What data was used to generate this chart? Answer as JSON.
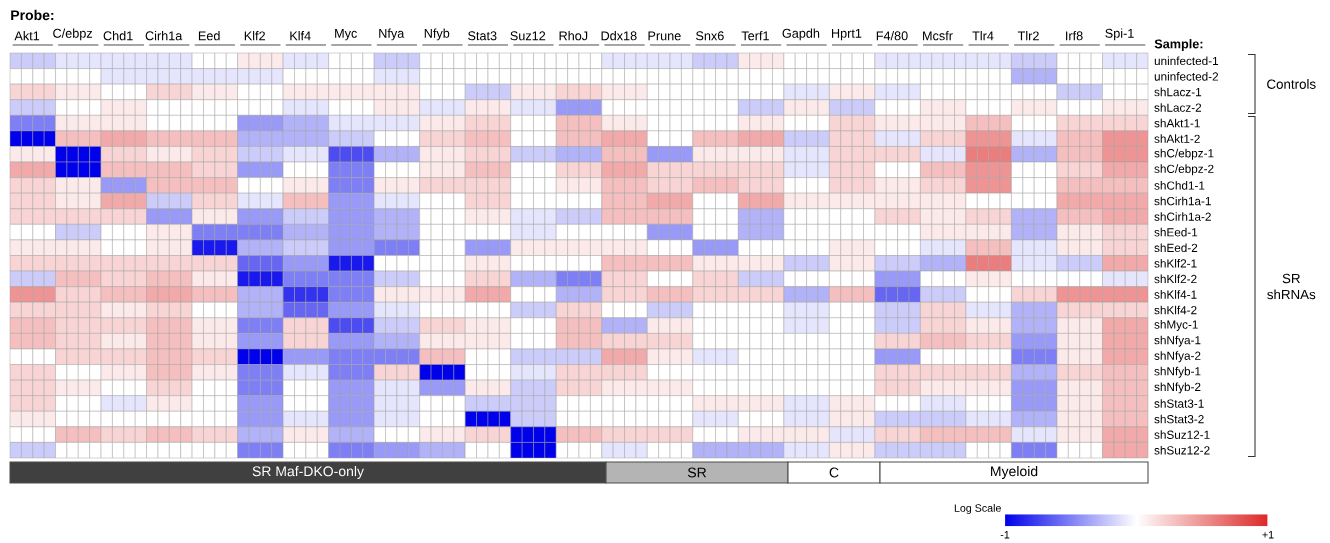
{
  "chart_data": {
    "type": "heatmap",
    "xlabel": "Probe:",
    "ylabel": "Sample:",
    "clabel": "Log Scale",
    "categories": [
      null,
      "Akt1",
      null,
      null,
      null,
      "C/ebpz",
      null,
      null,
      null,
      "Chd1",
      null,
      null,
      null,
      "Cirh1a",
      null,
      null,
      null,
      "Eed",
      null,
      null,
      null,
      "Klf2",
      null,
      null,
      null,
      "Klf4",
      null,
      null,
      null,
      "Myc",
      null,
      null,
      null,
      "Nfya",
      null,
      null,
      null,
      "Nfyb",
      null,
      null,
      null,
      "Stat3",
      null,
      null,
      null,
      "Suz12",
      null,
      null,
      null,
      "RhoJ",
      null,
      null,
      null,
      "Ddx18",
      null,
      null,
      null,
      "Prune",
      null,
      null,
      null,
      "Snx6",
      null,
      null,
      null,
      "Terf1",
      null,
      null,
      null,
      "Gapdh",
      null,
      null,
      null,
      "Hprt1",
      null,
      null,
      null,
      "F4/80",
      null,
      null,
      null,
      "Mcsfr",
      null,
      null,
      null,
      "Tlr4",
      null,
      null,
      null,
      "Tlr2",
      null,
      null,
      null,
      "Irf8",
      null,
      null,
      null,
      "Spi-1",
      null,
      null
    ],
    "y_categories": [
      "uninfected-1",
      "uninfected-2",
      "shLacz-1",
      "shLacz-2",
      "shAkt1-1",
      "shAkt1-2",
      "shC/ebpz-1",
      "shC/ebpz-2",
      "shChd1-1",
      "shCirh1a-1",
      "shCirh1a-2",
      "shEed-1",
      "shEed-2",
      "shKlf2-1",
      "shKlf2-2",
      "shKlf4-1",
      "shKlf4-2",
      "shMyc-1",
      "shNfya-1",
      "shNfya-2",
      "shNfyb-1",
      "shNfyb-2",
      "shStat3-1",
      "shStat3-2",
      "shSuz12-1",
      "shSuz12-2"
    ],
    "cells": [
      [
        -0.2,
        -0.2,
        -0.2,
        -0.2,
        -0.1,
        -0.1,
        -0.1,
        -0.1,
        -0.1,
        -0.1,
        -0.1,
        -0.1,
        -0.1,
        -0.1,
        -0.1,
        -0.1,
        0,
        0,
        0,
        0,
        0.1,
        0.1,
        0.1,
        0.1,
        -0.1,
        -0.1,
        -0.1,
        -0.1,
        0,
        0,
        0,
        0,
        -0.2,
        -0.2,
        -0.2,
        -0.2,
        0,
        0,
        0,
        0,
        0,
        0,
        0,
        0,
        0,
        0,
        0,
        0,
        0,
        0,
        0,
        0,
        -0.1,
        -0.1,
        -0.1,
        -0.1,
        -0.1,
        -0.1,
        -0.1,
        -0.1,
        -0.2,
        -0.2,
        -0.2,
        -0.2,
        0.1,
        0.1,
        0.1,
        0.1,
        0,
        0,
        0,
        0,
        0,
        0,
        0,
        0,
        -0.1,
        -0.1,
        -0.1,
        -0.1,
        -0.1,
        -0.1,
        -0.1,
        -0.1,
        -0.1,
        -0.1,
        -0.1,
        -0.1,
        -0.2,
        -0.2,
        -0.2,
        -0.2,
        0,
        0,
        0,
        0,
        -0.1,
        -0.1,
        -0.1,
        -0.1
      ],
      [
        0,
        0,
        0,
        0,
        0,
        0,
        0,
        0,
        -0.1,
        -0.1,
        -0.1,
        -0.1,
        -0.1,
        -0.1,
        -0.1,
        -0.1,
        -0.1,
        -0.1,
        -0.1,
        -0.1,
        -0.1,
        -0.1,
        -0.1,
        -0.1,
        0,
        0,
        0,
        0,
        0,
        0,
        0,
        0,
        -0.1,
        -0.1,
        -0.1,
        -0.1,
        0,
        0,
        0,
        0,
        0,
        0,
        0,
        0,
        0,
        0,
        0,
        0,
        0,
        0,
        0,
        0,
        0,
        0,
        0,
        0,
        0,
        0,
        0,
        0,
        0,
        0,
        0,
        0,
        0,
        0,
        0,
        0,
        0,
        0,
        0,
        0,
        0,
        0,
        0,
        0,
        0,
        0,
        0,
        0,
        0,
        0,
        0,
        0,
        0,
        0,
        0,
        0,
        -0.3,
        -0.3,
        -0.3,
        -0.3,
        0,
        0,
        0,
        0,
        0,
        0,
        0,
        0
      ],
      [
        0.2,
        0.2,
        0.2,
        0.2,
        0.1,
        0.1,
        0.1,
        0.1,
        0,
        0,
        0,
        0,
        0.2,
        0.2,
        0.2,
        0.2,
        0.1,
        0.1,
        0.1,
        0.1,
        0,
        0,
        0,
        0,
        0.1,
        0.1,
        0.1,
        0.1,
        0.1,
        0.1,
        0.1,
        0.1,
        0.1,
        0.1,
        0.1,
        0.1,
        0,
        0,
        0,
        0,
        -0.2,
        -0.2,
        -0.2,
        -0.2,
        0.1,
        0.1,
        0.1,
        0.1,
        0.2,
        0.2,
        0.2,
        0.2,
        0.1,
        0.1,
        0.1,
        0.1,
        0,
        0,
        0,
        0,
        0,
        0,
        0,
        0,
        0,
        0,
        0,
        0,
        -0.1,
        -0.1,
        -0.1,
        -0.1,
        0.1,
        0.1,
        0.1,
        0.1,
        -0.1,
        -0.1,
        -0.1,
        -0.1,
        0,
        0,
        0,
        0,
        0,
        0,
        0,
        0,
        0,
        0,
        0,
        0,
        -0.2,
        -0.2,
        -0.2,
        -0.2,
        0,
        0,
        0,
        0
      ],
      [
        -0.2,
        -0.2,
        -0.2,
        -0.2,
        0,
        0,
        0,
        0,
        0.1,
        0.1,
        0.1,
        0.1,
        0,
        0,
        0,
        0,
        0,
        0,
        0,
        0,
        0,
        0,
        0,
        0,
        -0.1,
        -0.1,
        -0.1,
        -0.1,
        0,
        0,
        0,
        0,
        0.1,
        0.1,
        0.1,
        0.1,
        -0.1,
        -0.1,
        -0.1,
        -0.1,
        0.1,
        0.1,
        0.1,
        0.1,
        -0.1,
        -0.1,
        -0.1,
        -0.1,
        -0.4,
        -0.4,
        -0.4,
        -0.4,
        0,
        0,
        0,
        0,
        0,
        0,
        0,
        0,
        0,
        0,
        0,
        0,
        -0.2,
        -0.2,
        -0.2,
        -0.2,
        0.1,
        0.1,
        0.1,
        0.1,
        -0.2,
        -0.2,
        -0.2,
        -0.2,
        0,
        0,
        0,
        0,
        0.1,
        0.1,
        0.1,
        0.1,
        0,
        0,
        0,
        0,
        0.1,
        0.1,
        0.1,
        0.1,
        0,
        0,
        0,
        0,
        0.1,
        0.1,
        0.1,
        0.1
      ],
      [
        -0.5,
        -0.5,
        -0.5,
        -0.5,
        0.1,
        0.1,
        0.1,
        0.1,
        0.1,
        0.1,
        0.1,
        0.1,
        0,
        0,
        0,
        0,
        0,
        0,
        0,
        0,
        -0.4,
        -0.4,
        -0.4,
        -0.4,
        -0.3,
        -0.3,
        -0.3,
        -0.3,
        -0.1,
        -0.1,
        -0.1,
        -0.1,
        -0.1,
        -0.1,
        -0.1,
        -0.1,
        0.1,
        0.1,
        0.1,
        0.1,
        0.2,
        0.2,
        0.2,
        0.2,
        0,
        0,
        0,
        0,
        0.3,
        0.3,
        0.3,
        0.3,
        0.1,
        0.1,
        0.1,
        0.1,
        0,
        0,
        0,
        0,
        0,
        0,
        0,
        0,
        0.1,
        0.1,
        0.1,
        0.1,
        0,
        0,
        0,
        0,
        0.2,
        0.2,
        0.2,
        0.2,
        0.1,
        0.1,
        0.1,
        0.1,
        0.1,
        0.1,
        0.1,
        0.1,
        0.3,
        0.3,
        0.3,
        0.3,
        0,
        0,
        0,
        0,
        0.2,
        0.2,
        0.2,
        0.2,
        0.2,
        0.2,
        0.2,
        0.2
      ],
      [
        -1,
        -1,
        -1,
        -1,
        0.3,
        0.3,
        0.3,
        0.3,
        0.4,
        0.4,
        0.4,
        0.4,
        0.3,
        0.3,
        0.3,
        0.3,
        0.3,
        0.3,
        0.3,
        0.3,
        -0.3,
        -0.3,
        -0.3,
        -0.3,
        -0.3,
        -0.3,
        -0.3,
        -0.3,
        -0.2,
        -0.2,
        -0.2,
        -0.2,
        0,
        0,
        0,
        0,
        0.2,
        0.2,
        0.2,
        0.2,
        0.3,
        0.3,
        0.3,
        0.3,
        0,
        0,
        0,
        0,
        0.3,
        0.3,
        0.3,
        0.3,
        0.4,
        0.4,
        0.4,
        0.4,
        0,
        0,
        0,
        0,
        0.3,
        0.3,
        0.3,
        0.3,
        0.4,
        0.4,
        0.4,
        0.4,
        -0.2,
        -0.2,
        -0.2,
        -0.2,
        0.2,
        0.2,
        0.2,
        0.2,
        -0.1,
        -0.1,
        -0.1,
        -0.1,
        0.2,
        0.2,
        0.2,
        0.2,
        0.5,
        0.5,
        0.5,
        0.5,
        -0.1,
        -0.1,
        -0.1,
        -0.1,
        0.3,
        0.3,
        0.3,
        0.3,
        0.5,
        0.5,
        0.5,
        0.5
      ],
      [
        0.1,
        0.1,
        0.1,
        0.1,
        -1,
        -1,
        -1,
        -1,
        0.2,
        0.2,
        0.2,
        0.2,
        0.1,
        0.1,
        0.1,
        0.1,
        0.2,
        0.2,
        0.2,
        0.2,
        -0.2,
        -0.2,
        -0.2,
        -0.2,
        -0.1,
        -0.1,
        -0.1,
        -0.1,
        -0.7,
        -0.7,
        -0.7,
        -0.7,
        -0.3,
        -0.3,
        -0.3,
        -0.3,
        0.1,
        0.1,
        0.1,
        0.1,
        0.2,
        0.2,
        0.2,
        0.2,
        -0.2,
        -0.2,
        -0.2,
        -0.2,
        -0.3,
        -0.3,
        -0.3,
        -0.3,
        0.3,
        0.3,
        0.3,
        0.3,
        -0.4,
        -0.4,
        -0.4,
        -0.4,
        0.1,
        0.1,
        0.1,
        0.1,
        0.1,
        0.1,
        0.1,
        0.1,
        -0.1,
        -0.1,
        -0.1,
        -0.1,
        0.2,
        0.2,
        0.2,
        0.2,
        0.2,
        0.2,
        0.2,
        0.2,
        -0.1,
        -0.1,
        -0.1,
        -0.1,
        0.6,
        0.6,
        0.6,
        0.6,
        -0.3,
        -0.3,
        -0.3,
        -0.3,
        0.3,
        0.3,
        0.3,
        0.3,
        0.5,
        0.5,
        0.5,
        0.5
      ],
      [
        0.4,
        0.4,
        0.4,
        0.4,
        -1,
        -1,
        -1,
        -1,
        0.3,
        0.3,
        0.3,
        0.3,
        0.3,
        0.3,
        0.3,
        0.3,
        0.2,
        0.2,
        0.2,
        0.2,
        -0.4,
        -0.4,
        -0.4,
        -0.4,
        0,
        0,
        0,
        0,
        -0.5,
        -0.5,
        -0.5,
        -0.5,
        0,
        0,
        0,
        0,
        0.1,
        0.1,
        0.1,
        0.1,
        0.3,
        0.3,
        0.3,
        0.3,
        0,
        0,
        0,
        0,
        0.2,
        0.2,
        0.2,
        0.2,
        0.4,
        0.4,
        0.4,
        0.4,
        0.2,
        0.2,
        0.2,
        0.2,
        0.2,
        0.2,
        0.2,
        0.2,
        0.2,
        0.2,
        0.2,
        0.2,
        -0.1,
        -0.1,
        -0.1,
        -0.1,
        0.2,
        0.2,
        0.2,
        0.2,
        0,
        0,
        0,
        0,
        0.3,
        0.3,
        0.3,
        0.3,
        0.5,
        0.5,
        0.5,
        0.5,
        0,
        0,
        0,
        0,
        0.2,
        0.2,
        0.2,
        0.2,
        0.4,
        0.4,
        0.4,
        0.4
      ],
      [
        0.2,
        0.2,
        0.2,
        0.2,
        0.1,
        0.1,
        0.1,
        0.1,
        -0.4,
        -0.4,
        -0.4,
        -0.4,
        0.3,
        0.3,
        0.3,
        0.3,
        0.3,
        0.3,
        0.3,
        0.3,
        0,
        0,
        0,
        0,
        0.1,
        0.1,
        0.1,
        0.1,
        -0.5,
        -0.5,
        -0.5,
        -0.5,
        0.1,
        0.1,
        0.1,
        0.1,
        0.2,
        0.2,
        0.2,
        0.2,
        0.2,
        0.2,
        0.2,
        0.2,
        0,
        0,
        0,
        0,
        0.1,
        0.1,
        0.1,
        0.1,
        0.3,
        0.3,
        0.3,
        0.3,
        0.2,
        0.2,
        0.2,
        0.2,
        0.3,
        0.3,
        0.3,
        0.3,
        0.2,
        0.2,
        0.2,
        0.2,
        0,
        0,
        0,
        0,
        0.2,
        0.2,
        0.2,
        0.2,
        0.1,
        0.1,
        0.1,
        0.1,
        0.2,
        0.2,
        0.2,
        0.2,
        0.5,
        0.5,
        0.5,
        0.5,
        0,
        0,
        0,
        0,
        0.3,
        0.3,
        0.3,
        0.3,
        0.3,
        0.3,
        0.3,
        0.3
      ],
      [
        0.2,
        0.2,
        0.2,
        0.2,
        0.1,
        0.1,
        0.1,
        0.1,
        0.4,
        0.4,
        0.4,
        0.4,
        -0.2,
        -0.2,
        -0.2,
        -0.2,
        0.2,
        0.2,
        0.2,
        0.2,
        -0.1,
        -0.1,
        -0.1,
        -0.1,
        0.3,
        0.3,
        0.3,
        0.3,
        -0.4,
        -0.4,
        -0.4,
        -0.4,
        -0.1,
        -0.1,
        -0.1,
        -0.1,
        0,
        0,
        0,
        0,
        0.2,
        0.2,
        0.2,
        0.2,
        0,
        0,
        0,
        0,
        0,
        0,
        0,
        0,
        0.3,
        0.3,
        0.3,
        0.3,
        0.4,
        0.4,
        0.4,
        0.4,
        0,
        0,
        0,
        0,
        0.4,
        0.4,
        0.4,
        0.4,
        0.1,
        0.1,
        0.1,
        0.1,
        0.1,
        0.1,
        0.1,
        0.1,
        0.1,
        0.1,
        0.1,
        0.1,
        0.1,
        0.1,
        0.1,
        0.1,
        0,
        0,
        0,
        0,
        0,
        0,
        0,
        0,
        0.4,
        0.4,
        0.4,
        0.4,
        0.4,
        0.4,
        0.4,
        0.4
      ],
      [
        0.2,
        0.2,
        0.2,
        0.2,
        0.2,
        0.2,
        0.2,
        0.2,
        0.2,
        0.2,
        0.2,
        0.2,
        -0.4,
        -0.4,
        -0.4,
        -0.4,
        0.1,
        0.1,
        0.1,
        0.1,
        -0.4,
        -0.4,
        -0.4,
        -0.4,
        -0.2,
        -0.2,
        -0.2,
        -0.2,
        -0.4,
        -0.4,
        -0.4,
        -0.4,
        -0.3,
        -0.3,
        -0.3,
        -0.3,
        0,
        0,
        0,
        0,
        0.1,
        0.1,
        0.1,
        0.1,
        -0.1,
        -0.1,
        -0.1,
        -0.1,
        -0.2,
        -0.2,
        -0.2,
        -0.2,
        0.3,
        0.3,
        0.3,
        0.3,
        0.3,
        0.3,
        0.3,
        0.3,
        0,
        0,
        0,
        0,
        -0.3,
        -0.3,
        -0.3,
        -0.3,
        0,
        0,
        0,
        0,
        0,
        0,
        0,
        0,
        0.2,
        0.2,
        0.2,
        0.2,
        0.1,
        0.1,
        0.1,
        0.1,
        0.2,
        0.2,
        0.2,
        0.2,
        -0.3,
        -0.3,
        -0.3,
        -0.3,
        0.3,
        0.3,
        0.3,
        0.3,
        0.4,
        0.4,
        0.4,
        0.4
      ],
      [
        0,
        0,
        0,
        0,
        -0.2,
        -0.2,
        -0.2,
        -0.2,
        0,
        0,
        0,
        0,
        0.1,
        0.1,
        0.1,
        0.1,
        -0.5,
        -0.5,
        -0.5,
        -0.5,
        -0.5,
        -0.5,
        -0.5,
        -0.5,
        -0.3,
        -0.3,
        -0.3,
        -0.3,
        -0.4,
        -0.4,
        -0.4,
        -0.4,
        -0.3,
        -0.3,
        -0.3,
        -0.3,
        0,
        0,
        0,
        0,
        0,
        0,
        0,
        0,
        -0.1,
        -0.1,
        -0.1,
        -0.1,
        0,
        0,
        0,
        0,
        0,
        0,
        0,
        0,
        -0.4,
        -0.4,
        -0.4,
        -0.4,
        0,
        0,
        0,
        0,
        -0.3,
        -0.3,
        -0.3,
        -0.3,
        0,
        0,
        0,
        0,
        0,
        0,
        0,
        0,
        0,
        0,
        0,
        0,
        0.1,
        0.1,
        0.1,
        0.1,
        0.1,
        0.1,
        0.1,
        0.1,
        -0.3,
        -0.3,
        -0.3,
        -0.3,
        0.1,
        0.1,
        0.1,
        0.1,
        0.2,
        0.2,
        0.2,
        0.2
      ],
      [
        0.1,
        0.1,
        0.1,
        0.1,
        0.1,
        0.1,
        0.1,
        0.1,
        0,
        0,
        0,
        0,
        0.1,
        0.1,
        0.1,
        0.1,
        -0.9,
        -0.9,
        -0.9,
        -0.9,
        -0.3,
        -0.3,
        -0.3,
        -0.3,
        -0.2,
        -0.2,
        -0.2,
        -0.2,
        -0.4,
        -0.4,
        -0.4,
        -0.4,
        -0.5,
        -0.5,
        -0.5,
        -0.5,
        0,
        0,
        0,
        0,
        -0.4,
        -0.4,
        -0.4,
        -0.4,
        0.1,
        0.1,
        0.1,
        0.1,
        0.1,
        0.1,
        0.1,
        0.1,
        0.1,
        0.1,
        0.1,
        0.1,
        0,
        0,
        0,
        0,
        -0.4,
        -0.4,
        -0.4,
        -0.4,
        0,
        0,
        0,
        0,
        0,
        0,
        0,
        0,
        0.1,
        0.1,
        0.1,
        0.1,
        0,
        0,
        0,
        0,
        -0.1,
        -0.1,
        -0.1,
        -0.1,
        0.3,
        0.3,
        0.3,
        0.3,
        -0.1,
        -0.1,
        -0.1,
        -0.1,
        0.1,
        0.1,
        0.1,
        0.1,
        0.2,
        0.2,
        0.2,
        0.2
      ],
      [
        0.2,
        0.2,
        0.2,
        0.2,
        0.2,
        0.2,
        0.2,
        0.2,
        0.2,
        0.2,
        0.2,
        0.2,
        0.2,
        0.2,
        0.2,
        0.2,
        0.2,
        0.2,
        0.2,
        0.2,
        -0.6,
        -0.6,
        -0.6,
        -0.6,
        -0.4,
        -0.4,
        -0.4,
        -0.4,
        -0.9,
        -0.9,
        -0.9,
        -0.9,
        0,
        0,
        0,
        0,
        0,
        0,
        0,
        0,
        0.1,
        0.1,
        0.1,
        0.1,
        0,
        0,
        0,
        0,
        0,
        0,
        0,
        0,
        0.3,
        0.3,
        0.3,
        0.3,
        0.3,
        0.3,
        0.3,
        0.3,
        0.1,
        0.1,
        0.1,
        0.1,
        0.1,
        0.1,
        0.1,
        0.1,
        -0.2,
        -0.2,
        -0.2,
        -0.2,
        0.1,
        0.1,
        0.1,
        0.1,
        -0.2,
        -0.2,
        -0.2,
        -0.2,
        -0.3,
        -0.3,
        -0.3,
        -0.3,
        0.6,
        0.6,
        0.6,
        0.6,
        -0.1,
        -0.1,
        -0.1,
        -0.1,
        -0.2,
        -0.2,
        -0.2,
        -0.2,
        0.4,
        0.4,
        0.4,
        0.4
      ],
      [
        -0.2,
        -0.2,
        -0.2,
        -0.2,
        0.3,
        0.3,
        0.3,
        0.3,
        0.2,
        0.2,
        0.2,
        0.2,
        0.3,
        0.3,
        0.3,
        0.3,
        0.1,
        0.1,
        0.1,
        0.1,
        -0.9,
        -0.9,
        -0.9,
        -0.9,
        -0.5,
        -0.5,
        -0.5,
        -0.5,
        -0.5,
        -0.5,
        -0.5,
        -0.5,
        -0.2,
        -0.2,
        -0.2,
        -0.2,
        0,
        0,
        0,
        0,
        0.2,
        0.2,
        0.2,
        0.2,
        -0.3,
        -0.3,
        -0.3,
        -0.3,
        -0.5,
        -0.5,
        -0.5,
        -0.5,
        0.2,
        0.2,
        0.2,
        0.2,
        0,
        0,
        0,
        0,
        0.2,
        0.2,
        0.2,
        0.2,
        -0.2,
        -0.2,
        -0.2,
        -0.2,
        0,
        0,
        0,
        0,
        0,
        0,
        0,
        0,
        -0.4,
        -0.4,
        -0.4,
        -0.4,
        0,
        0,
        0,
        0,
        0.1,
        0.1,
        0.1,
        0.1,
        0,
        0,
        0,
        0,
        0,
        0,
        0,
        0,
        -0.1,
        -0.1,
        -0.1,
        -0.1
      ],
      [
        0.5,
        0.5,
        0.5,
        0.5,
        0.2,
        0.2,
        0.2,
        0.2,
        0.3,
        0.3,
        0.3,
        0.3,
        0.4,
        0.4,
        0.4,
        0.4,
        0.3,
        0.3,
        0.3,
        0.3,
        -0.3,
        -0.3,
        -0.3,
        -0.3,
        -0.8,
        -0.8,
        -0.8,
        -0.8,
        -0.5,
        -0.5,
        -0.5,
        -0.5,
        0.1,
        0.1,
        0.1,
        0.1,
        0.1,
        0.1,
        0.1,
        0.1,
        0.4,
        0.4,
        0.4,
        0.4,
        0,
        0,
        0,
        0,
        -0.3,
        -0.3,
        -0.3,
        -0.3,
        0.2,
        0.2,
        0.2,
        0.2,
        0.3,
        0.3,
        0.3,
        0.3,
        0.2,
        0.2,
        0.2,
        0.2,
        0.2,
        0.2,
        0.2,
        0.2,
        -0.3,
        -0.3,
        -0.3,
        -0.3,
        0.3,
        0.3,
        0.3,
        0.3,
        -0.6,
        -0.6,
        -0.6,
        -0.6,
        -0.2,
        -0.2,
        -0.2,
        -0.2,
        0,
        0,
        0,
        0,
        0.2,
        0.2,
        0.2,
        0.2,
        0.5,
        0.5,
        0.5,
        0.5,
        0.5,
        0.5,
        0.5,
        0.5
      ],
      [
        0.2,
        0.2,
        0.2,
        0.2,
        0.2,
        0.2,
        0.2,
        0.2,
        0.1,
        0.1,
        0.1,
        0.1,
        0.2,
        0.2,
        0.2,
        0.2,
        0,
        0,
        0,
        0,
        -0.3,
        -0.3,
        -0.3,
        -0.3,
        -0.6,
        -0.6,
        -0.6,
        -0.6,
        -0.4,
        -0.4,
        -0.4,
        -0.4,
        -0.1,
        -0.1,
        -0.1,
        -0.1,
        0,
        0,
        0,
        0,
        0,
        0,
        0,
        0,
        -0.2,
        -0.2,
        -0.2,
        -0.2,
        0.2,
        0.2,
        0.2,
        0.2,
        0,
        0,
        0,
        0,
        -0.2,
        -0.2,
        -0.2,
        -0.2,
        0,
        0,
        0,
        0,
        0,
        0,
        0,
        0,
        -0.1,
        -0.1,
        -0.1,
        -0.1,
        0,
        0,
        0,
        0,
        -0.2,
        -0.2,
        -0.2,
        -0.2,
        0.2,
        0.2,
        0.2,
        0.2,
        -0.1,
        -0.1,
        -0.1,
        -0.1,
        -0.3,
        -0.3,
        -0.3,
        -0.3,
        0.2,
        0.2,
        0.2,
        0.2,
        0.2,
        0.2,
        0.2,
        0.2
      ],
      [
        0.3,
        0.3,
        0.3,
        0.3,
        0.2,
        0.2,
        0.2,
        0.2,
        0.2,
        0.2,
        0.2,
        0.2,
        0.3,
        0.3,
        0.3,
        0.3,
        0.1,
        0.1,
        0.1,
        0.1,
        -0.5,
        -0.5,
        -0.5,
        -0.5,
        0.2,
        0.2,
        0.2,
        0.2,
        -0.7,
        -0.7,
        -0.7,
        -0.7,
        -0.2,
        -0.2,
        -0.2,
        -0.2,
        0.2,
        0.2,
        0.2,
        0.2,
        0.1,
        0.1,
        0.1,
        0.1,
        0,
        0,
        0,
        0,
        0.3,
        0.3,
        0.3,
        0.3,
        -0.3,
        -0.3,
        -0.3,
        -0.3,
        0.1,
        0.1,
        0.1,
        0.1,
        0,
        0,
        0,
        0,
        0,
        0,
        0,
        0,
        -0.1,
        -0.1,
        -0.1,
        -0.1,
        0,
        0,
        0,
        0,
        -0.2,
        -0.2,
        -0.2,
        -0.2,
        0.2,
        0.2,
        0.2,
        0.2,
        0.1,
        0.1,
        0.1,
        0.1,
        -0.3,
        -0.3,
        -0.3,
        -0.3,
        0.1,
        0.1,
        0.1,
        0.1,
        0.4,
        0.4,
        0.4,
        0.4
      ],
      [
        0.3,
        0.3,
        0.3,
        0.3,
        0.2,
        0.2,
        0.2,
        0.2,
        0.1,
        0.1,
        0.1,
        0.1,
        0.3,
        0.3,
        0.3,
        0.3,
        0.1,
        0.1,
        0.1,
        0.1,
        -0.4,
        -0.4,
        -0.4,
        -0.4,
        0.2,
        0.2,
        0.2,
        0.2,
        -0.4,
        -0.4,
        -0.4,
        -0.4,
        -0.3,
        -0.3,
        -0.3,
        -0.3,
        0.1,
        0.1,
        0.1,
        0.1,
        0.1,
        0.1,
        0.1,
        0.1,
        0,
        0,
        0,
        0,
        0.3,
        0.3,
        0.3,
        0.3,
        0.2,
        0.2,
        0.2,
        0.2,
        0.2,
        0.2,
        0.2,
        0.2,
        0,
        0,
        0,
        0,
        0,
        0,
        0,
        0,
        0,
        0,
        0,
        0,
        0,
        0,
        0,
        0,
        0.2,
        0.2,
        0.2,
        0.2,
        0.3,
        0.3,
        0.3,
        0.3,
        0.2,
        0.2,
        0.2,
        0.2,
        -0.4,
        -0.4,
        -0.4,
        -0.4,
        0.1,
        0.1,
        0.1,
        0.1,
        0.4,
        0.4,
        0.4,
        0.4
      ],
      [
        0,
        0,
        0,
        0,
        0.2,
        0.2,
        0.2,
        0.2,
        0.2,
        0.2,
        0.2,
        0.2,
        0.3,
        0.3,
        0.3,
        0.3,
        0.2,
        0.2,
        0.2,
        0.2,
        -1,
        -1,
        -1,
        -1,
        -0.4,
        -0.4,
        -0.4,
        -0.4,
        -0.5,
        -0.5,
        -0.5,
        -0.5,
        -0.5,
        -0.5,
        -0.5,
        -0.5,
        0.3,
        0.3,
        0.3,
        0.3,
        0,
        0,
        0,
        0,
        -0.2,
        -0.2,
        -0.2,
        -0.2,
        -0.2,
        -0.2,
        -0.2,
        -0.2,
        0.4,
        0.4,
        0.4,
        0.4,
        0.1,
        0.1,
        0.1,
        0.1,
        -0.1,
        -0.1,
        -0.1,
        -0.1,
        0,
        0,
        0,
        0,
        0,
        0,
        0,
        0,
        0,
        0,
        0,
        0,
        -0.4,
        -0.4,
        -0.4,
        -0.4,
        0,
        0,
        0,
        0,
        0,
        0,
        0,
        0,
        -0.5,
        -0.5,
        -0.5,
        -0.5,
        0.1,
        0.1,
        0.1,
        0.1,
        0.4,
        0.4,
        0.4,
        0.4
      ],
      [
        0.2,
        0.2,
        0.2,
        0.2,
        0,
        0,
        0,
        0,
        0.1,
        0.1,
        0.1,
        0.1,
        0.3,
        0.3,
        0.3,
        0.3,
        0.1,
        0.1,
        0.1,
        0.1,
        -0.5,
        -0.5,
        -0.5,
        -0.5,
        -0.1,
        -0.1,
        -0.1,
        -0.1,
        -0.5,
        -0.5,
        -0.5,
        -0.5,
        0.2,
        0.2,
        0.2,
        0.2,
        -1,
        -1,
        -1,
        -1,
        0,
        0,
        0,
        0,
        -0.1,
        -0.1,
        -0.1,
        -0.1,
        0.2,
        0.2,
        0.2,
        0.2,
        0.2,
        0.2,
        0.2,
        0.2,
        0,
        0,
        0,
        0,
        0,
        0,
        0,
        0,
        0,
        0,
        0,
        0,
        0,
        0,
        0,
        0,
        0,
        0,
        0,
        0,
        0.2,
        0.2,
        0.2,
        0.2,
        0.2,
        0.2,
        0.2,
        0.2,
        0.2,
        0.2,
        0.2,
        0.2,
        -0.3,
        -0.3,
        -0.3,
        -0.3,
        0.2,
        0.2,
        0.2,
        0.2,
        0.3,
        0.3,
        0.3,
        0.3
      ],
      [
        0.2,
        0.2,
        0.2,
        0.2,
        0.1,
        0.1,
        0.1,
        0.1,
        0,
        0,
        0,
        0,
        0.2,
        0.2,
        0.2,
        0.2,
        0,
        0,
        0,
        0,
        -0.5,
        -0.5,
        -0.5,
        -0.5,
        0,
        0,
        0,
        0,
        -0.4,
        -0.4,
        -0.4,
        -0.4,
        -0.1,
        -0.1,
        -0.1,
        -0.1,
        -0.4,
        -0.4,
        -0.4,
        -0.4,
        0.1,
        0.1,
        0.1,
        0.1,
        -0.2,
        -0.2,
        -0.2,
        -0.2,
        0.2,
        0.2,
        0.2,
        0.2,
        0.1,
        0.1,
        0.1,
        0.1,
        0.1,
        0.1,
        0.1,
        0.1,
        0,
        0,
        0,
        0,
        0,
        0,
        0,
        0,
        0,
        0,
        0,
        0,
        0,
        0,
        0,
        0,
        0.2,
        0.2,
        0.2,
        0.2,
        0.1,
        0.1,
        0.1,
        0.1,
        0.1,
        0.1,
        0.1,
        0.1,
        -0.4,
        -0.4,
        -0.4,
        -0.4,
        0.1,
        0.1,
        0.1,
        0.1,
        0.3,
        0.3,
        0.3,
        0.3
      ],
      [
        0.2,
        0.2,
        0.2,
        0.2,
        0,
        0,
        0,
        0,
        -0.1,
        -0.1,
        -0.1,
        -0.1,
        0.1,
        0.1,
        0.1,
        0.1,
        0,
        0,
        0,
        0,
        -0.4,
        -0.4,
        -0.4,
        -0.4,
        0,
        0,
        0,
        0,
        -0.4,
        -0.4,
        -0.4,
        -0.4,
        -0.1,
        -0.1,
        -0.1,
        -0.1,
        0,
        0,
        0,
        0,
        -0.2,
        -0.2,
        -0.2,
        -0.2,
        -0.2,
        -0.2,
        -0.2,
        -0.2,
        0,
        0,
        0,
        0,
        0,
        0,
        0,
        0,
        0,
        0,
        0,
        0,
        0.1,
        0.1,
        0.1,
        0.1,
        0.1,
        0.1,
        0.1,
        0.1,
        -0.1,
        -0.1,
        -0.1,
        -0.1,
        0.1,
        0.1,
        0.1,
        0.1,
        0,
        0,
        0,
        0,
        -0.1,
        -0.1,
        -0.1,
        -0.1,
        0,
        0,
        0,
        0,
        -0.4,
        -0.4,
        -0.4,
        -0.4,
        0.1,
        0.1,
        0.1,
        0.1,
        0.3,
        0.3,
        0.3,
        0.3
      ],
      [
        0.1,
        0.1,
        0.1,
        0.1,
        0,
        0,
        0,
        0,
        0,
        0,
        0,
        0,
        0,
        0,
        0,
        0,
        0,
        0,
        0,
        0,
        -0.4,
        -0.4,
        -0.4,
        -0.4,
        -0.1,
        -0.1,
        -0.1,
        -0.1,
        -0.4,
        -0.4,
        -0.4,
        -0.4,
        -0.1,
        -0.1,
        -0.1,
        -0.1,
        0,
        0,
        0,
        0,
        -1,
        -1,
        -1,
        -1,
        -0.2,
        -0.2,
        -0.2,
        -0.2,
        0,
        0,
        0,
        0,
        0,
        0,
        0,
        0,
        0,
        0,
        0,
        0,
        -0.1,
        -0.1,
        -0.1,
        -0.1,
        0,
        0,
        0,
        0,
        -0.1,
        -0.1,
        -0.1,
        -0.1,
        0.1,
        0.1,
        0.1,
        0.1,
        -0.2,
        -0.2,
        -0.2,
        -0.2,
        -0.2,
        -0.2,
        -0.2,
        -0.2,
        -0.1,
        -0.1,
        -0.1,
        -0.1,
        -0.3,
        -0.3,
        -0.3,
        -0.3,
        0.1,
        0.1,
        0.1,
        0.1,
        0.3,
        0.3,
        0.3,
        0.3
      ],
      [
        0,
        0,
        0,
        0,
        0.3,
        0.3,
        0.3,
        0.3,
        0.2,
        0.2,
        0.2,
        0.2,
        0.3,
        0.3,
        0.3,
        0.3,
        0.2,
        0.2,
        0.2,
        0.2,
        -0.3,
        -0.3,
        -0.3,
        -0.3,
        0.1,
        0.1,
        0.1,
        0.1,
        -0.3,
        -0.3,
        -0.3,
        -0.3,
        0,
        0,
        0,
        0,
        0.1,
        0.1,
        0.1,
        0.1,
        0.2,
        0.2,
        0.2,
        0.2,
        -1,
        -1,
        -1,
        -1,
        0.3,
        0.3,
        0.3,
        0.3,
        0.2,
        0.2,
        0.2,
        0.2,
        0.2,
        0.2,
        0.2,
        0.2,
        0,
        0,
        0,
        0,
        0.1,
        0.1,
        0.1,
        0.1,
        0.1,
        0.1,
        0.1,
        0.1,
        -0.1,
        -0.1,
        -0.1,
        -0.1,
        0.2,
        0.2,
        0.2,
        0.2,
        0.3,
        0.3,
        0.3,
        0.3,
        0.3,
        0.3,
        0.3,
        0.3,
        -0.1,
        -0.1,
        -0.1,
        -0.1,
        0.1,
        0.1,
        0.1,
        0.1,
        0.4,
        0.4,
        0.4,
        0.4
      ],
      [
        -0.2,
        -0.2,
        -0.2,
        -0.2,
        0,
        0,
        0,
        0,
        0,
        0,
        0,
        0,
        0,
        0,
        0,
        0,
        0,
        0,
        0,
        0,
        -0.5,
        -0.5,
        -0.5,
        -0.5,
        0,
        0,
        0,
        0,
        -0.5,
        -0.5,
        -0.5,
        -0.5,
        -0.4,
        -0.4,
        -0.4,
        -0.4,
        -0.3,
        -0.3,
        -0.3,
        -0.3,
        0,
        0,
        0,
        0,
        -1,
        -1,
        -1,
        -1,
        0,
        0,
        0,
        0,
        -0.1,
        -0.1,
        -0.1,
        -0.1,
        0,
        0,
        0,
        0,
        -0.3,
        -0.3,
        -0.3,
        -0.3,
        -0.3,
        -0.3,
        -0.3,
        -0.3,
        -0.1,
        -0.1,
        -0.1,
        -0.1,
        0.1,
        0.1,
        0.1,
        0.1,
        -0.2,
        -0.2,
        -0.2,
        -0.2,
        -0.2,
        -0.2,
        -0.2,
        -0.2,
        0,
        0,
        0,
        0,
        -0.5,
        -0.5,
        -0.5,
        -0.5,
        0,
        0,
        0,
        0,
        0.4,
        0.4,
        0.4,
        0.4
      ]
    ],
    "clim": [
      -1,
      1
    ],
    "cticks": [
      {
        "value": -1,
        "label": "-1"
      },
      {
        "value": 1,
        "label": "+1"
      }
    ],
    "annotations": [
      "SR  Maf-DKO-only",
      "SR",
      "C",
      "Myeloid",
      "Controls",
      "SR shRNAs"
    ]
  }
}
